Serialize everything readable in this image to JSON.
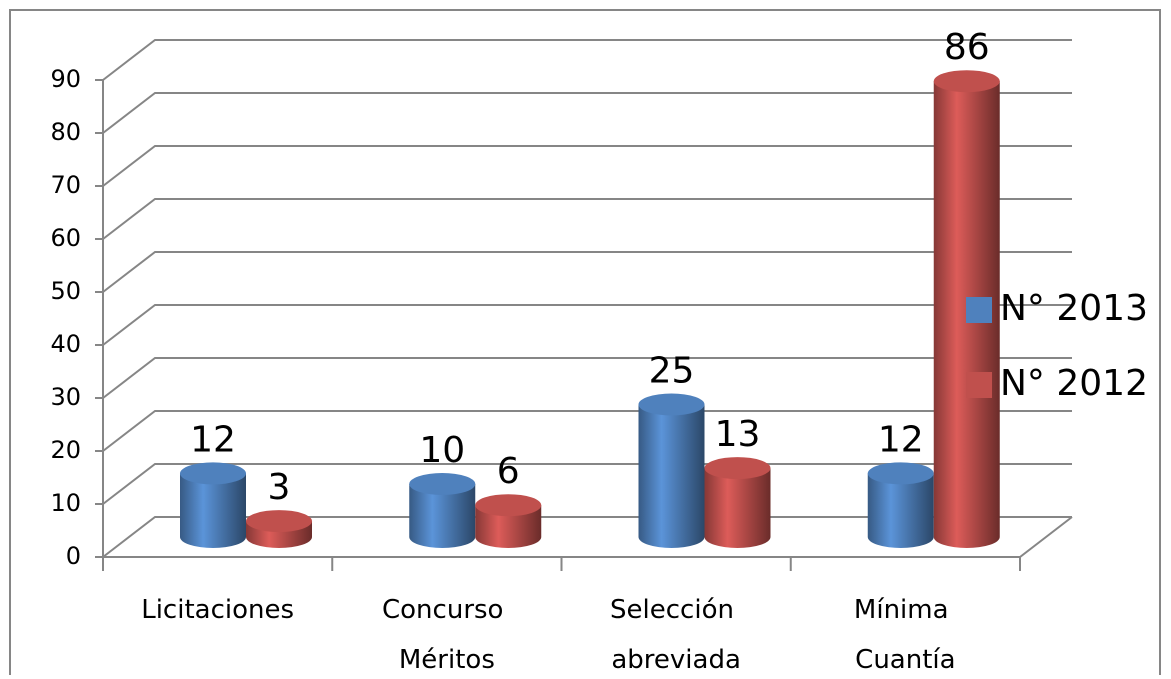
{
  "chart_data": {
    "type": "bar3d",
    "categories": [
      "Licitaciones",
      "Concurso Méritos",
      "Selección abreviada",
      "Mínima Cuantía"
    ],
    "series": [
      {
        "name": "N° 2013",
        "color": "#4f81bd",
        "values": [
          12,
          10,
          25,
          12
        ]
      },
      {
        "name": "N° 2012",
        "color": "#c0504d",
        "values": [
          3,
          6,
          13,
          86
        ]
      }
    ],
    "ylim": [
      0,
      90
    ],
    "yticks": [
      0,
      10,
      20,
      30,
      40,
      50,
      60,
      70,
      80,
      90
    ],
    "grid": true,
    "legend": "right"
  }
}
